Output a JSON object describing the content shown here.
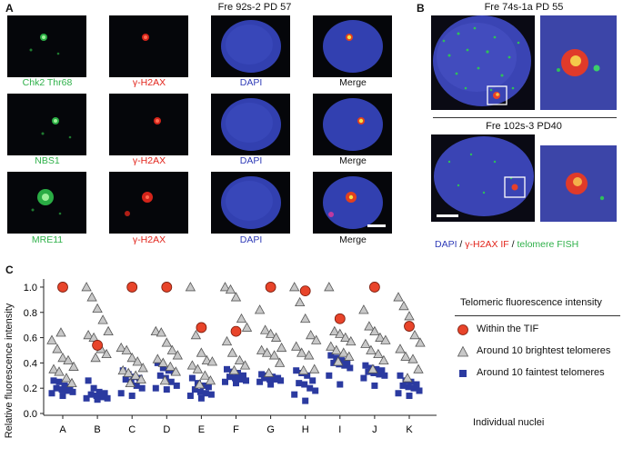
{
  "panelA": {
    "letter": "A",
    "title": "Fre 92s-2 PD 57",
    "rows": [
      {
        "labels": [
          "Chk2 Thr68",
          "γ-H2AX",
          "DAPI",
          "Merge"
        ]
      },
      {
        "labels": [
          "NBS1",
          "γ-H2AX",
          "DAPI",
          "Merge"
        ]
      },
      {
        "labels": [
          "MRE11",
          "γ-H2AX",
          "DAPI",
          "Merge"
        ]
      }
    ]
  },
  "panelB": {
    "letter": "B",
    "title1": "Fre 74s-1a PD 55",
    "title2": "Fre 102s-3 PD40",
    "legend": {
      "dapi": "DAPI",
      "sep1": " / ",
      "h2ax": "γ-H2AX IF",
      "sep2": " / ",
      "telo": "telomere FISH"
    }
  },
  "panelC": {
    "letter": "C",
    "legend_title": "Telomeric fluorescence intensity",
    "legend_items": [
      "Within the TIF",
      "Around 10 brightest telomeres",
      "Around 10 faintest telomeres"
    ]
  },
  "colors": {
    "green": "#2fb14a",
    "red": "#e2231a",
    "blue": "#2f3bb8",
    "tif": "#e8442a",
    "gray": "#c8c8c8",
    "square": "#2b3aa0"
  },
  "chart_data": {
    "type": "scatter",
    "xlabel": "Individual nuclei",
    "ylabel": "Relative fluorescence intensity",
    "categories": [
      "A",
      "B",
      "C",
      "D",
      "E",
      "F",
      "G",
      "H",
      "I",
      "J",
      "K"
    ],
    "yticks": [
      0.0,
      0.2,
      0.4,
      0.6,
      0.8,
      1.0
    ],
    "ylim": [
      0.0,
      1.05
    ],
    "series": [
      {
        "name": "Within the TIF",
        "marker": "circle",
        "values": [
          1.0,
          0.54,
          1.0,
          1.0,
          0.68,
          0.65,
          1.0,
          0.97,
          0.75,
          1.0,
          0.69
        ]
      },
      {
        "name": "Around 10 brightest telomeres",
        "marker": "triangle",
        "points": [
          [
            [
              0.58,
              0.51,
              0.44,
              0.42,
              0.37,
              0.35,
              0.33,
              0.28,
              0.24,
              0.64
            ]
          ],
          [
            [
              1.0,
              0.92,
              0.83,
              0.74,
              0.65,
              0.62,
              0.6,
              0.51,
              0.47,
              0.44
            ]
          ],
          [
            [
              0.52,
              0.5,
              0.44,
              0.41,
              0.36,
              0.34,
              0.32,
              0.3,
              0.27,
              0.24
            ]
          ],
          [
            [
              0.65,
              0.64,
              0.56,
              0.5,
              0.46,
              0.43,
              0.4,
              0.37,
              0.33,
              0.26
            ]
          ],
          [
            [
              1.0,
              0.62,
              0.48,
              0.42,
              0.41,
              0.38,
              0.35,
              0.3,
              0.26,
              0.23
            ]
          ],
          [
            [
              1.0,
              0.98,
              0.92,
              0.75,
              0.68,
              0.57,
              0.48,
              0.42,
              0.38,
              0.34
            ]
          ],
          [
            [
              0.82,
              0.66,
              0.63,
              0.6,
              0.52,
              0.5,
              0.48,
              0.46,
              0.4,
              0.32
            ]
          ],
          [
            [
              1.0,
              0.88,
              0.75,
              0.62,
              0.58,
              0.53,
              0.48,
              0.46,
              0.35,
              0.34
            ]
          ],
          [
            [
              1.0,
              0.65,
              0.63,
              0.6,
              0.57,
              0.53,
              0.5,
              0.48,
              0.45,
              0.41
            ]
          ],
          [
            [
              0.82,
              0.69,
              0.65,
              0.6,
              0.58,
              0.55,
              0.5,
              0.47,
              0.42,
              0.35
            ]
          ],
          [
            [
              0.92,
              0.85,
              0.77,
              0.62,
              0.56,
              0.51,
              0.45,
              0.43,
              0.35,
              0.28
            ]
          ]
        ]
      },
      {
        "name": "Around 10 faintest telomeres",
        "marker": "square",
        "points": [
          [
            [
              0.26,
              0.25,
              0.22,
              0.21,
              0.2,
              0.19,
              0.18,
              0.17,
              0.16,
              0.14
            ]
          ],
          [
            [
              0.26,
              0.2,
              0.17,
              0.16,
              0.15,
              0.14,
              0.13,
              0.12,
              0.12,
              0.11
            ]
          ],
          [
            [
              0.34,
              0.31,
              0.29,
              0.28,
              0.27,
              0.25,
              0.22,
              0.2,
              0.16,
              0.14
            ]
          ],
          [
            [
              0.4,
              0.36,
              0.34,
              0.33,
              0.3,
              0.28,
              0.25,
              0.22,
              0.2,
              0.19
            ]
          ],
          [
            [
              0.28,
              0.24,
              0.22,
              0.21,
              0.19,
              0.17,
              0.16,
              0.15,
              0.14,
              0.12
            ]
          ],
          [
            [
              0.35,
              0.33,
              0.32,
              0.3,
              0.29,
              0.28,
              0.27,
              0.26,
              0.25,
              0.24
            ]
          ],
          [
            [
              0.31,
              0.3,
              0.29,
              0.28,
              0.28,
              0.27,
              0.27,
              0.26,
              0.25,
              0.23
            ]
          ],
          [
            [
              0.34,
              0.32,
              0.3,
              0.26,
              0.24,
              0.23,
              0.2,
              0.18,
              0.15,
              0.1
            ]
          ],
          [
            [
              0.46,
              0.44,
              0.42,
              0.4,
              0.4,
              0.39,
              0.38,
              0.36,
              0.3,
              0.23
            ]
          ],
          [
            [
              0.38,
              0.36,
              0.35,
              0.34,
              0.33,
              0.32,
              0.31,
              0.3,
              0.28,
              0.22
            ]
          ],
          [
            [
              0.3,
              0.26,
              0.25,
              0.23,
              0.22,
              0.21,
              0.2,
              0.18,
              0.16,
              0.14
            ]
          ]
        ]
      }
    ]
  }
}
